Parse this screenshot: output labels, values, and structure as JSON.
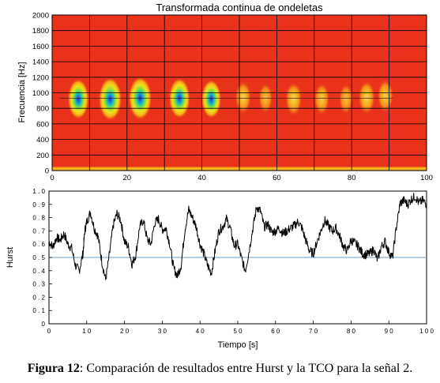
{
  "chart_data": [
    {
      "type": "heatmap",
      "title": "Transformada continua de ondeletas",
      "xlabel": "",
      "ylabel": "Frecuencia [Hz]",
      "xlim": [
        0,
        100
      ],
      "ylim": [
        0,
        2000
      ],
      "xticks": [
        "0",
        "20",
        "40",
        "60",
        "80",
        "100"
      ],
      "yticks": [
        "0",
        "200",
        "400",
        "600",
        "800",
        "1000",
        "1200",
        "1400",
        "1600",
        "1800",
        "2000"
      ],
      "grid": true,
      "background_color": "#e8321a",
      "low_freq_band": {
        "y_range": [
          0,
          50
        ],
        "color": "#f7b013"
      },
      "ridge_line": {
        "y": 930
      },
      "blobs": [
        {
          "x": 7,
          "y": 920,
          "intensity": 0.85
        },
        {
          "x": 15.5,
          "y": 920,
          "intensity": 1.0
        },
        {
          "x": 23.5,
          "y": 930,
          "intensity": 1.0
        },
        {
          "x": 34,
          "y": 930,
          "intensity": 0.85
        },
        {
          "x": 42.5,
          "y": 920,
          "intensity": 0.75
        },
        {
          "x": 51,
          "y": 940,
          "intensity": 0.45
        },
        {
          "x": 57,
          "y": 930,
          "intensity": 0.3
        },
        {
          "x": 64.5,
          "y": 920,
          "intensity": 0.5
        },
        {
          "x": 72,
          "y": 920,
          "intensity": 0.4
        },
        {
          "x": 78.5,
          "y": 920,
          "intensity": 0.3
        },
        {
          "x": 84,
          "y": 940,
          "intensity": 0.5
        },
        {
          "x": 89,
          "y": 960,
          "intensity": 0.45
        }
      ]
    },
    {
      "type": "line",
      "title": "",
      "xlabel": "Tiempo [s]",
      "ylabel": "Hurst",
      "xlim": [
        0,
        100
      ],
      "ylim": [
        0,
        1
      ],
      "xticks": [
        "0",
        "1 0",
        "2 0",
        "3 0",
        "4 0",
        "5 0",
        "6 0",
        "7 0",
        "8 0",
        "9 0",
        "1 0 0"
      ],
      "yticks": [
        "0",
        "0 . 1",
        "0 . 2",
        "0 . 3",
        "0 . 4",
        "0 . 5",
        "0 . 6",
        "0 . 7",
        "0 . 8",
        "0 . 9",
        "1 . 0"
      ],
      "grid": false,
      "reference_line": {
        "y": 0.5,
        "color": "#6a9fc9"
      },
      "line_color": "#000000",
      "series": [
        {
          "x": [
            0,
            1,
            2,
            3,
            4,
            5,
            6,
            7,
            8,
            9,
            9.5,
            10,
            11,
            12,
            13,
            14,
            15,
            16,
            17,
            18,
            19,
            20,
            21,
            22,
            23,
            24,
            25,
            26,
            27,
            28,
            29,
            30,
            31,
            32,
            33,
            34,
            35,
            36,
            37,
            38,
            39,
            40,
            41,
            42,
            43,
            44,
            45,
            46,
            47,
            48,
            49,
            50,
            51,
            52,
            53,
            54,
            55,
            56,
            57,
            58,
            59,
            60,
            61,
            62,
            63,
            64,
            65,
            66,
            67,
            68,
            69,
            70,
            71,
            72,
            73,
            74,
            75,
            76,
            77,
            78,
            79,
            80,
            81,
            82,
            83,
            84,
            85,
            86,
            87,
            88,
            89,
            90,
            91,
            92,
            93,
            94,
            95,
            96,
            97,
            98,
            99,
            100
          ],
          "values": [
            0.62,
            0.58,
            0.65,
            0.63,
            0.68,
            0.6,
            0.57,
            0.44,
            0.4,
            0.53,
            0.7,
            0.77,
            0.84,
            0.72,
            0.66,
            0.47,
            0.33,
            0.52,
            0.74,
            0.83,
            0.78,
            0.62,
            0.58,
            0.45,
            0.52,
            0.73,
            0.78,
            0.64,
            0.6,
            0.76,
            0.79,
            0.71,
            0.72,
            0.6,
            0.42,
            0.36,
            0.44,
            0.71,
            0.86,
            0.8,
            0.73,
            0.6,
            0.53,
            0.44,
            0.38,
            0.55,
            0.7,
            0.73,
            0.79,
            0.72,
            0.59,
            0.6,
            0.49,
            0.4,
            0.55,
            0.72,
            0.88,
            0.85,
            0.73,
            0.75,
            0.69,
            0.7,
            0.72,
            0.68,
            0.7,
            0.72,
            0.74,
            0.77,
            0.72,
            0.63,
            0.55,
            0.53,
            0.62,
            0.7,
            0.78,
            0.74,
            0.7,
            0.72,
            0.66,
            0.58,
            0.55,
            0.63,
            0.61,
            0.58,
            0.53,
            0.52,
            0.53,
            0.56,
            0.48,
            0.58,
            0.62,
            0.54,
            0.5,
            0.73,
            0.91,
            0.93,
            0.9,
            0.94,
            0.96,
            0.91,
            0.93,
            0.9
          ]
        }
      ]
    }
  ],
  "caption": {
    "label": "Figura 12",
    "text": ": Comparación de resultados entre Hurst y la TCO para la señal 2."
  }
}
